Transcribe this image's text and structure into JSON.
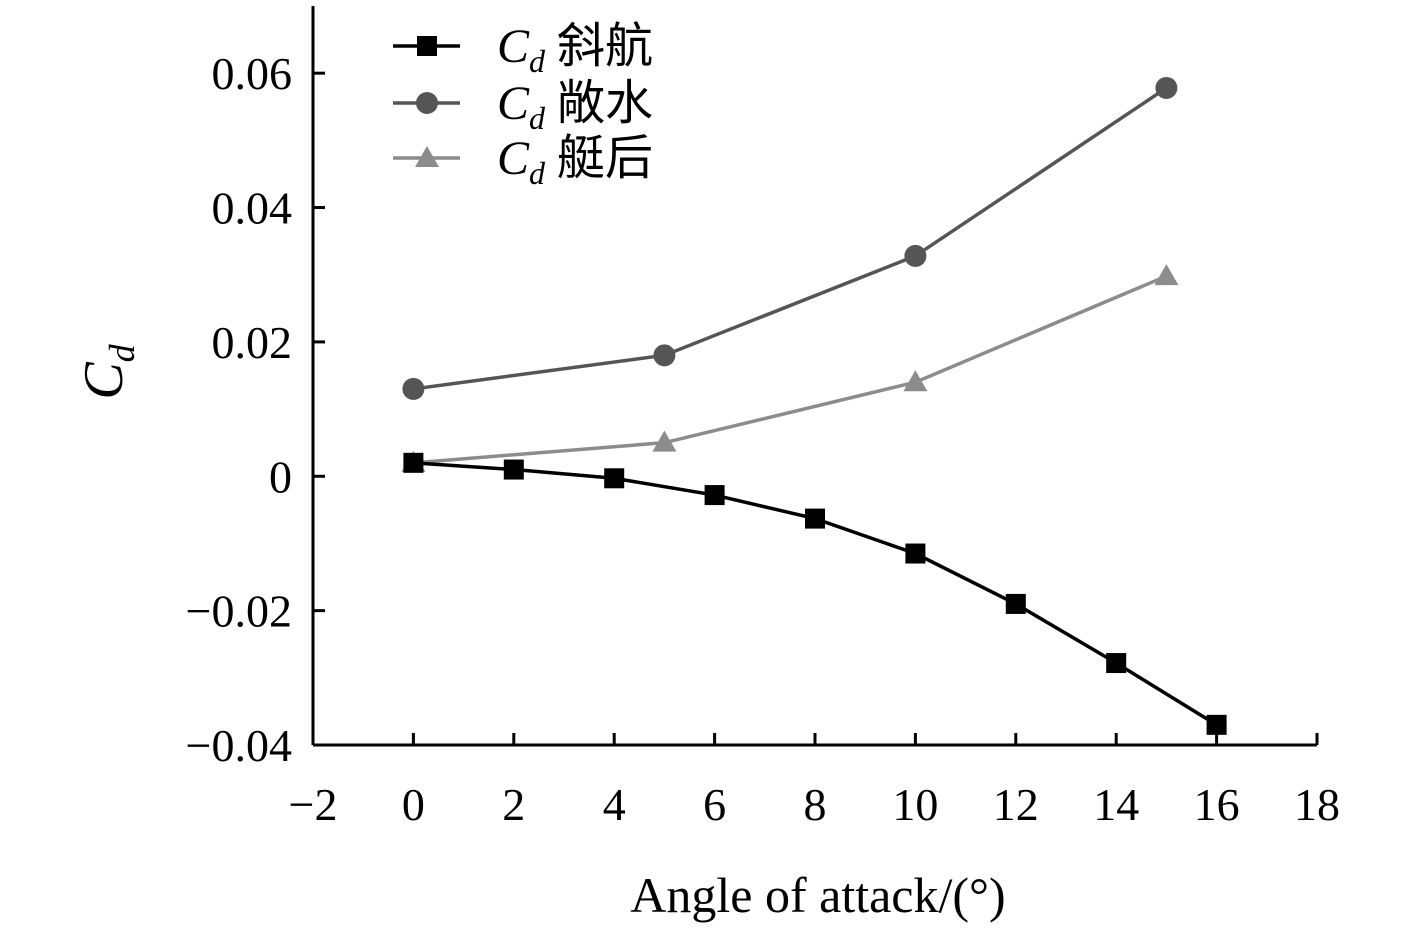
{
  "chart_data": {
    "type": "line",
    "title": "",
    "xlabel": "Angle of attack/(°)",
    "ylabel": "C",
    "ylabel_sub": "d",
    "xlim": [
      -2,
      18
    ],
    "ylim": [
      -0.04,
      0.07
    ],
    "xticks": [
      -2,
      0,
      2,
      4,
      6,
      8,
      10,
      12,
      14,
      16,
      18
    ],
    "xtick_labels": [
      "−2",
      "0",
      "2",
      "4",
      "6",
      "8",
      "10",
      "12",
      "14",
      "16",
      "18"
    ],
    "yticks": [
      -0.04,
      -0.02,
      0,
      0.02,
      0.04,
      0.06
    ],
    "ytick_labels": [
      "−0.04",
      "−0.02",
      "0",
      "0.02",
      "0.04",
      "0.06"
    ],
    "grid": false,
    "legend_position": "top-left",
    "series": [
      {
        "legend_symbol": "C",
        "legend_sub": "d",
        "legend_suffix": "斜航",
        "marker": "square",
        "color": "#000000",
        "x": [
          0,
          2,
          4,
          6,
          8,
          10,
          12,
          14,
          16
        ],
        "y": [
          0.002,
          0.001,
          -0.0003,
          -0.0028,
          -0.0063,
          -0.0115,
          -0.019,
          -0.0278,
          -0.037
        ]
      },
      {
        "legend_symbol": "C",
        "legend_sub": "d",
        "legend_suffix": "敞水",
        "marker": "circle",
        "color": "#555555",
        "x": [
          0,
          5,
          10,
          15
        ],
        "y": [
          0.013,
          0.018,
          0.0328,
          0.0578
        ]
      },
      {
        "legend_symbol": "C",
        "legend_sub": "d",
        "legend_suffix": "艇后",
        "marker": "triangle",
        "color": "#8c8c8c",
        "x": [
          0,
          5,
          10,
          15
        ],
        "y": [
          0.002,
          0.005,
          0.014,
          0.0298
        ]
      }
    ]
  }
}
